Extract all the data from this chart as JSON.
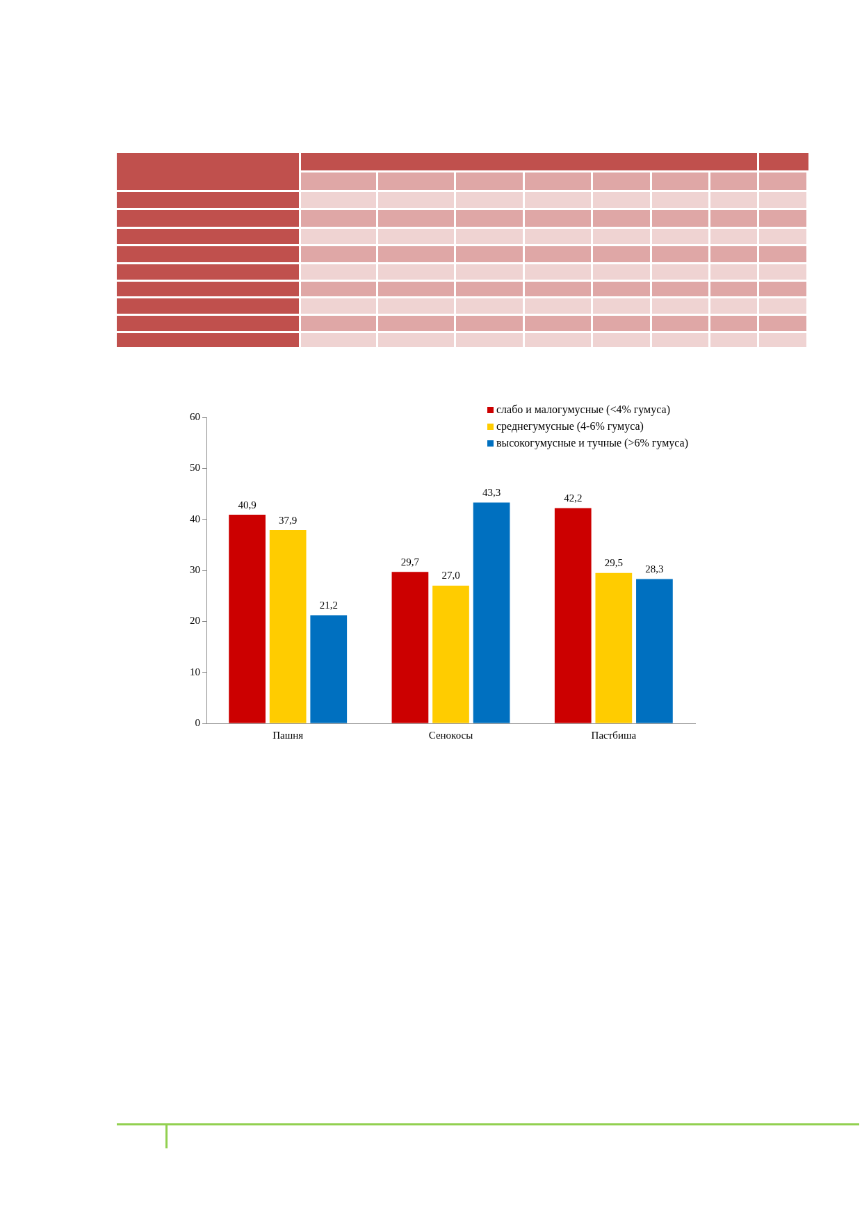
{
  "chart_data": {
    "type": "bar",
    "categories": [
      "Пашня",
      "Сенокосы",
      "Пастбиша"
    ],
    "series": [
      {
        "name": "слабо и малогумусные (<4% гумуса)",
        "color": "#cc0000",
        "values": [
          40.9,
          29.7,
          42.2
        ],
        "value_labels": [
          "40,9",
          "29,7",
          "42,2"
        ]
      },
      {
        "name": "среднегумусные (4-6% гумуса)",
        "color": "#ffcc00",
        "values": [
          37.9,
          27.0,
          29.5
        ],
        "value_labels": [
          "37,9",
          "27,0",
          "29,5"
        ]
      },
      {
        "name": "высокогумусные и тучные (>6% гумуса)",
        "color": "#0070c0",
        "values": [
          21.2,
          43.3,
          28.3
        ],
        "value_labels": [
          "21,2",
          "43,3",
          "28,3"
        ]
      }
    ],
    "ylim": [
      0,
      60
    ],
    "yticks": [
      0,
      10,
      20,
      30,
      40,
      50,
      60
    ],
    "grid": false,
    "legend": "top right"
  }
}
